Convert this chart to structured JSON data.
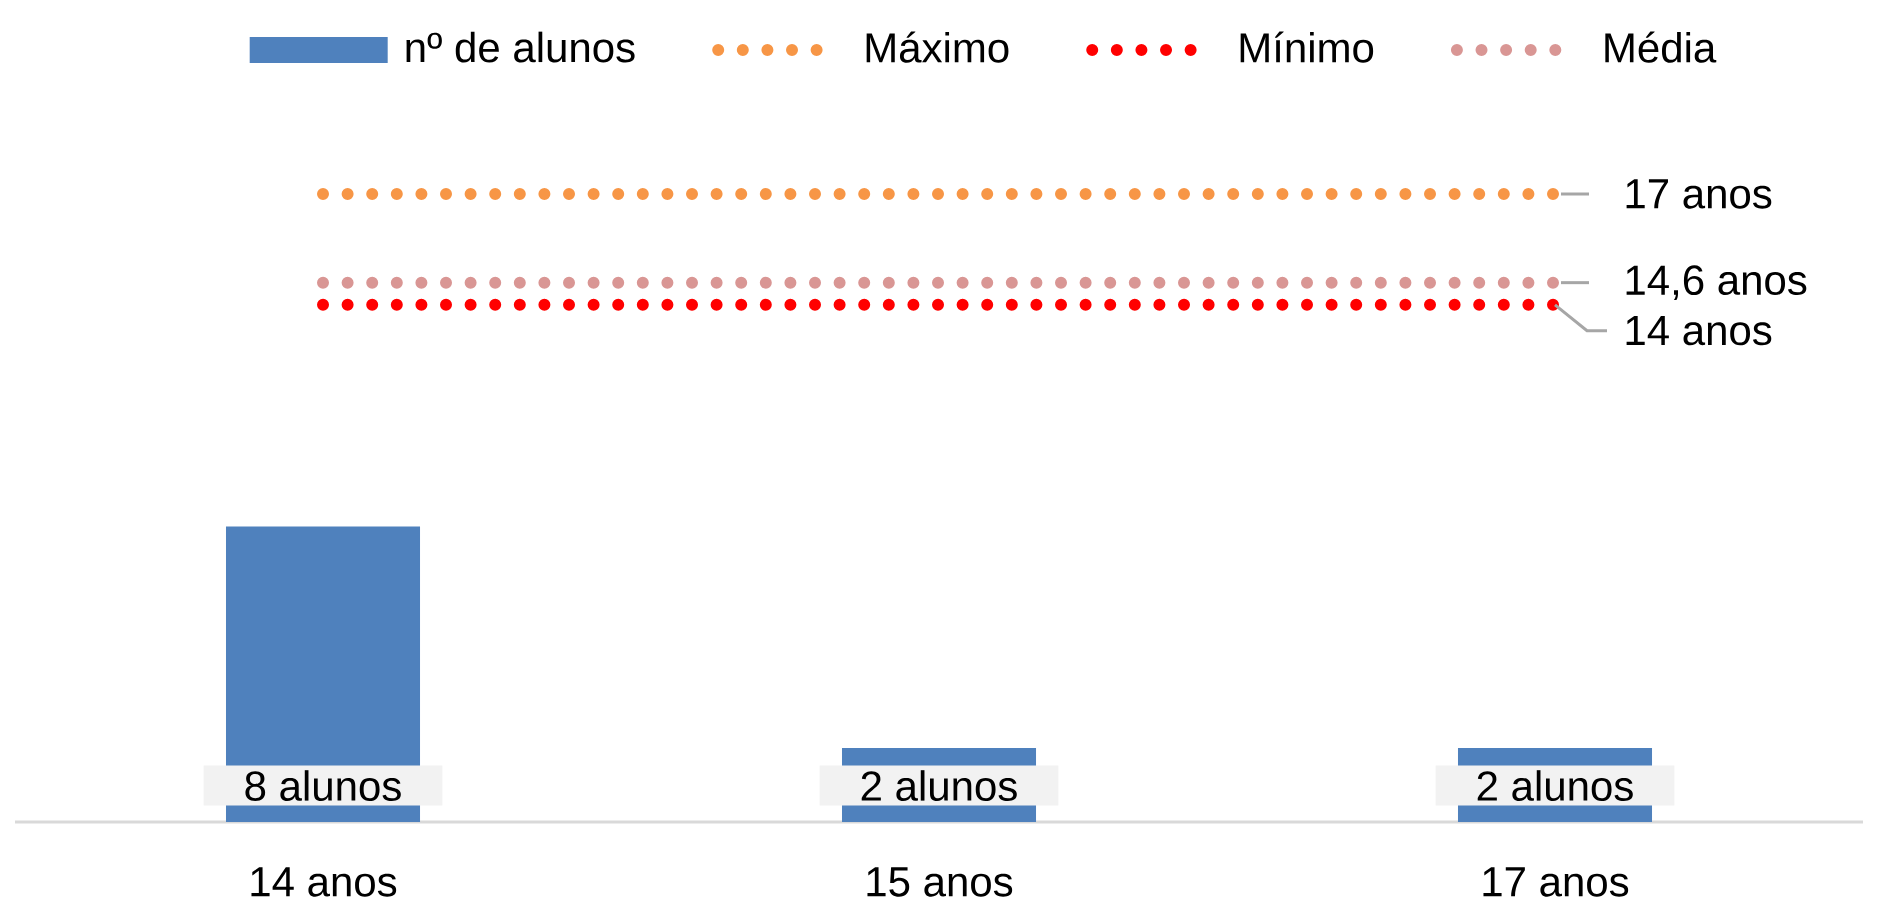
{
  "chart_data": {
    "type": "bar",
    "categories": [
      "14 anos",
      "15 anos",
      "17 anos"
    ],
    "series": [
      {
        "name": "nº de alunos",
        "color": "#4f81bd",
        "values": [
          8,
          2,
          2
        ],
        "value_labels": [
          "8 alunos",
          "2 alunos",
          "2 alunos"
        ]
      },
      {
        "name": "Máximo",
        "type": "line",
        "color": "#f79646",
        "line_style": "dotted",
        "values": [
          17,
          17,
          17
        ],
        "value_labels": [
          null,
          null,
          "17 anos"
        ]
      },
      {
        "name": "Mínimo",
        "type": "line",
        "color": "#ff0000",
        "line_style": "dotted",
        "values": [
          14,
          14,
          14
        ],
        "value_labels": [
          null,
          null,
          "14 anos"
        ]
      },
      {
        "name": "Média",
        "type": "line",
        "color": "#d99694",
        "line_style": "dotted",
        "values": [
          14.6,
          14.6,
          14.6
        ],
        "value_labels": [
          null,
          null,
          "14,6 anos"
        ]
      }
    ],
    "tick_labels": "x",
    "legend": "top"
  }
}
